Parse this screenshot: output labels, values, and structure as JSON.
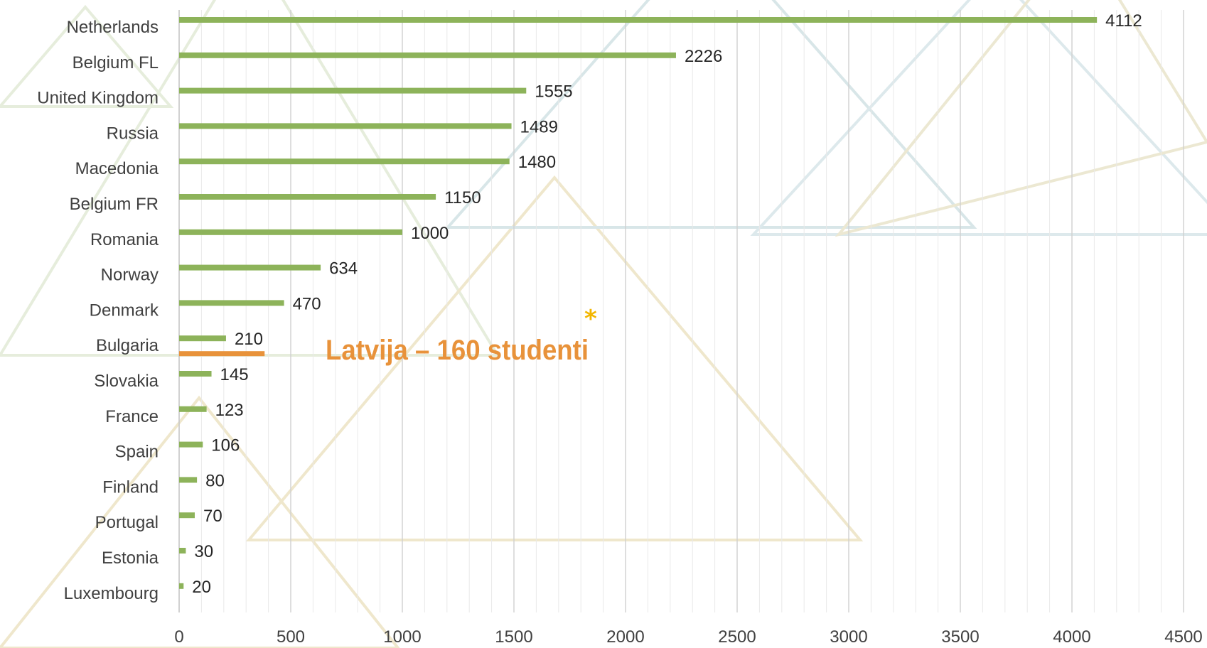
{
  "chart_data": {
    "type": "bar",
    "orientation": "horizontal",
    "categories": [
      "Netherlands",
      "Belgium FL",
      "United Kingdom",
      "Russia",
      "Macedonia",
      "Belgium FR",
      "Romania",
      "Norway",
      "Denmark",
      "Bulgaria",
      "Slovakia",
      "France",
      "Spain",
      "Finland",
      "Portugal",
      "Estonia",
      "Luxembourg"
    ],
    "values": [
      4112,
      2226,
      1555,
      1489,
      1480,
      1150,
      1000,
      634,
      470,
      210,
      145,
      123,
      106,
      80,
      70,
      30,
      20
    ],
    "data_labels": [
      "4112",
      "2226",
      "1555",
      "1489",
      "1480",
      "1150",
      "1000",
      "634",
      "470",
      "210",
      "145",
      "123",
      "106",
      "80",
      "70",
      "30",
      "20"
    ],
    "xlim": [
      0,
      4500
    ],
    "xticks": [
      0,
      500,
      1000,
      1500,
      2000,
      2500,
      3000,
      3500,
      4000,
      4500
    ],
    "xtick_labels": [
      "0",
      "500",
      "1000",
      "1500",
      "2000",
      "2500",
      "3000",
      "3500",
      "4000",
      "4500"
    ],
    "grid": true,
    "minor_grid": true,
    "title": "",
    "xlabel": "",
    "ylabel": "",
    "bar_color": "#8db35a",
    "highlight": {
      "value": 160,
      "color": "#e8923a",
      "after_category": "Bulgaria"
    },
    "annotation": {
      "text": "Latvija – 160 studenti",
      "marker": "*",
      "color": "#e8923a",
      "marker_color": "#f2b600"
    }
  }
}
